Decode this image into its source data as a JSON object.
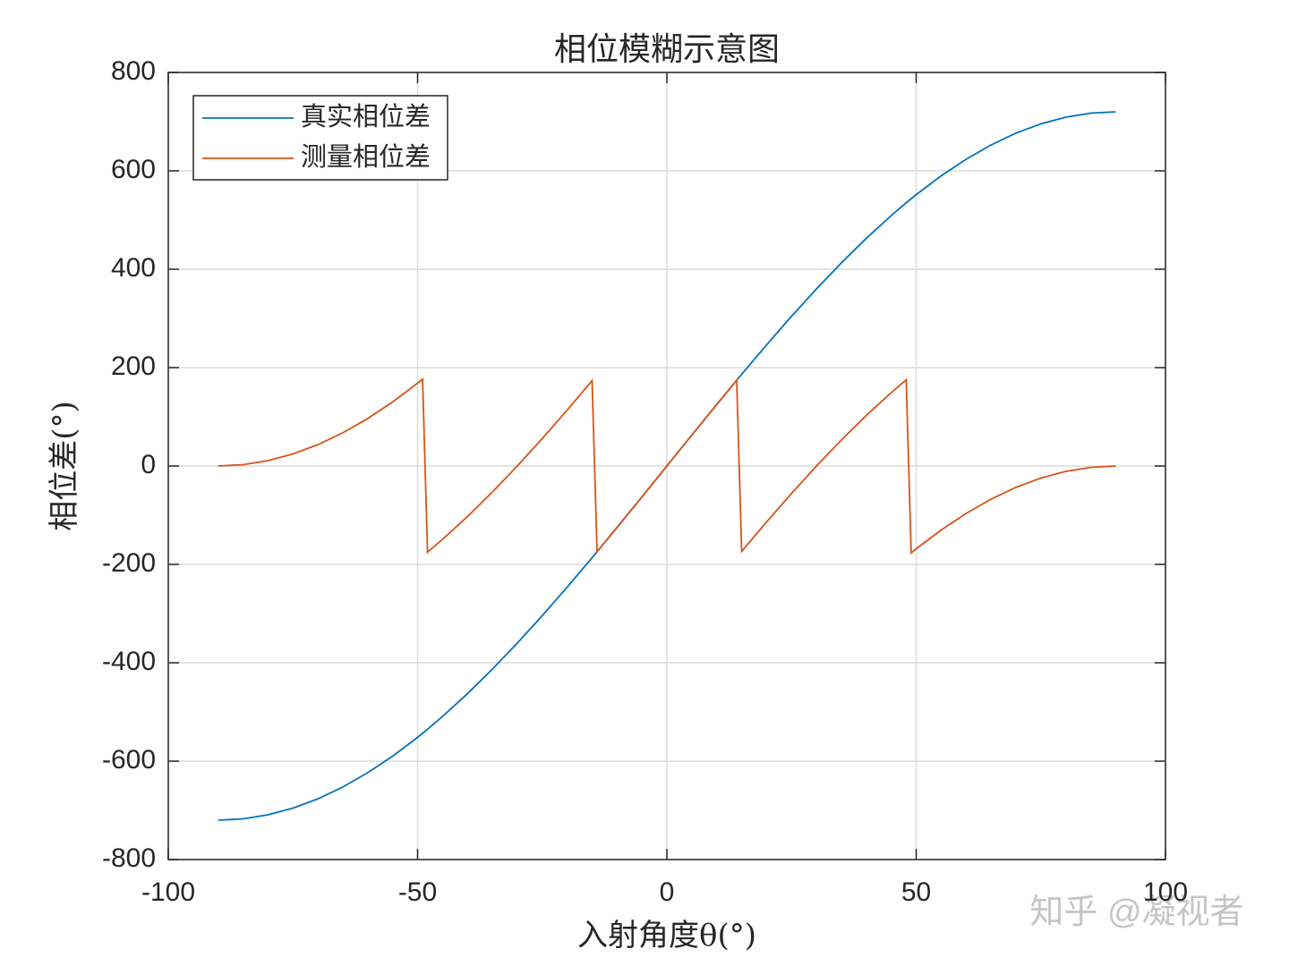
{
  "chart_data": {
    "type": "line",
    "title": "相位模糊示意图",
    "x_label": "入射角度θ(°)",
    "y_label": "相位差(°)",
    "x": [
      -90,
      -85,
      -80,
      -75,
      -70,
      -65,
      -60,
      -55,
      -50,
      -49,
      -48,
      -45,
      -40,
      -35,
      -30,
      -25,
      -20,
      -15,
      -14,
      -10,
      -5,
      0,
      5,
      10,
      14,
      15,
      20,
      25,
      30,
      35,
      40,
      45,
      48,
      49,
      50,
      55,
      60,
      65,
      70,
      75,
      80,
      85,
      90
    ],
    "series": [
      {
        "name": "真实相位差",
        "color": "#0072bd",
        "values": [
          -720,
          -717.3,
          -709.1,
          -695.5,
          -676.6,
          -652.5,
          -623.5,
          -589.8,
          -551.6,
          -543.4,
          -535.1,
          -509.1,
          -462.8,
          -413.0,
          -360,
          -304.3,
          -246.3,
          -186.4,
          -174.2,
          -125.0,
          -62.8,
          0,
          62.8,
          125.0,
          174.2,
          186.4,
          246.3,
          304.3,
          360,
          413.0,
          462.8,
          509.1,
          535.1,
          543.4,
          551.6,
          589.8,
          623.5,
          652.5,
          676.6,
          695.5,
          709.1,
          717.3,
          720
        ]
      },
      {
        "name": "测量相位差",
        "color": "#d95319",
        "values": [
          0,
          2.7,
          10.9,
          24.5,
          43.4,
          67.5,
          96.5,
          130.2,
          168.4,
          176.6,
          -175.1,
          -149.1,
          -102.8,
          -53.0,
          0,
          55.7,
          113.7,
          173.6,
          -174.2,
          -125.0,
          -62.8,
          0,
          62.8,
          125.0,
          174.2,
          -173.6,
          -113.7,
          -55.7,
          0,
          53.0,
          102.8,
          149.1,
          175.1,
          -176.6,
          -168.4,
          -130.2,
          -96.5,
          -67.5,
          -43.4,
          -24.5,
          -10.9,
          -2.7,
          0
        ]
      }
    ],
    "xlim": [
      -100,
      100
    ],
    "xticks": [
      -100,
      -50,
      0,
      50,
      100
    ],
    "ylim": [
      -800,
      800
    ],
    "yticks": [
      -800,
      -600,
      -400,
      -200,
      0,
      200,
      400,
      600,
      800
    ],
    "grid": true,
    "legend": "upper left",
    "watermark": "知乎 @凝视者"
  }
}
